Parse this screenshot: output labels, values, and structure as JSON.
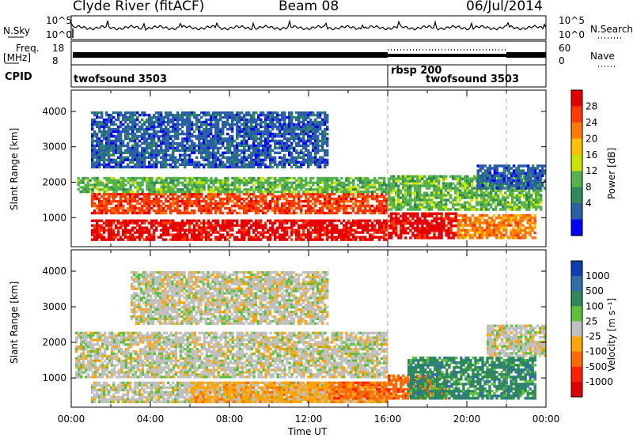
{
  "header": {
    "station": "Clyde River (fitACF)",
    "beam": "Beam 08",
    "date": "06/Jul/2014"
  },
  "summary_panels": {
    "nsky_label": "N.Sky",
    "nsky_ticks": [
      "10^5",
      "10^0"
    ],
    "nsearch_label": "N.Search",
    "nsearch_ticks": [
      "10^5",
      "10^0"
    ],
    "freq_label": "Freq.",
    "freq_unit": "[MHz]",
    "freq_ticks": [
      "18",
      "8"
    ],
    "nave_label": "Nave",
    "nave_ticks": [
      "60",
      "0"
    ],
    "cpid_label": "CPID",
    "cpid_segments": [
      {
        "label": "twofsound 3503",
        "start_h": 0,
        "end_h": 16
      },
      {
        "label": "rbsp 200",
        "start_h": 16,
        "end_h": 22
      },
      {
        "label": "twofsound 3503",
        "start_h": 16,
        "end_h": 22
      }
    ]
  },
  "chart_data": [
    {
      "type": "heatmap",
      "name": "power",
      "ylabel": "Slant Range [km]",
      "yticks": [
        "4000",
        "3000",
        "2000",
        "1000"
      ],
      "ylim": [
        180,
        4600
      ],
      "xlim": [
        0,
        24
      ],
      "colorbar": {
        "label": "Power [dB]",
        "ticks": [
          "28",
          "24",
          "20",
          "16",
          "12",
          "8",
          "4"
        ],
        "colors": [
          "#e60000",
          "#ff3a00",
          "#ff7a00",
          "#ffc000",
          "#c8e600",
          "#55b24c",
          "#2e8b57",
          "#2a5fa8",
          "#0000ff"
        ]
      },
      "regions": [
        {
          "t0": 1.0,
          "t1": 16.0,
          "r0": 350,
          "r1": 950,
          "level": 0
        },
        {
          "t0": 16.0,
          "t1": 19.5,
          "r0": 400,
          "r1": 1150,
          "level": 0
        },
        {
          "t0": 19.5,
          "t1": 23.5,
          "r0": 400,
          "r1": 1100,
          "level": 2
        },
        {
          "t0": 1.0,
          "t1": 16.0,
          "r0": 1100,
          "r1": 1700,
          "level": 1
        },
        {
          "t0": 0.3,
          "t1": 16.0,
          "r0": 1700,
          "r1": 2150,
          "level": 5
        },
        {
          "t0": 16.0,
          "t1": 23.8,
          "r0": 1200,
          "r1": 2200,
          "level": 5
        },
        {
          "t0": 20.5,
          "t1": 24.0,
          "r0": 1800,
          "r1": 2500,
          "level": 7
        },
        {
          "t0": 1.0,
          "t1": 13.0,
          "r0": 2400,
          "r1": 4000,
          "level": 7
        }
      ]
    },
    {
      "type": "heatmap",
      "name": "velocity",
      "ylabel": "Slant Range [km]",
      "xlabel": "Time UT",
      "xticks": [
        "00:00",
        "04:00",
        "08:00",
        "12:00",
        "16:00",
        "20:00",
        "00:00"
      ],
      "yticks": [
        "4000",
        "3000",
        "2000",
        "1000"
      ],
      "ylim": [
        180,
        4600
      ],
      "xlim": [
        0,
        24
      ],
      "colorbar": {
        "label": "Velocity [m s⁻¹]",
        "ticks": [
          "1000",
          "500",
          "100",
          "25",
          "-25",
          "-100",
          "-500",
          "-1000"
        ],
        "colors": [
          "#1040b0",
          "#2e6fa8",
          "#2e8b57",
          "#5cc03c",
          "#c0c0c0",
          "#ffa500",
          "#ff6a00",
          "#ff2000",
          "#e00000"
        ]
      },
      "regions": [
        {
          "t0": 0.2,
          "t1": 16.0,
          "r0": 1000,
          "r1": 2300,
          "level": 4
        },
        {
          "t0": 1.0,
          "t1": 16.0,
          "r0": 300,
          "r1": 900,
          "level": 4
        },
        {
          "t0": 6.0,
          "t1": 16.0,
          "r0": 300,
          "r1": 900,
          "level": 5
        },
        {
          "t0": 13.0,
          "t1": 16.0,
          "r0": 400,
          "r1": 900,
          "level": 6
        },
        {
          "t0": 16.0,
          "t1": 19.0,
          "r0": 400,
          "r1": 1100,
          "level": 6
        },
        {
          "t0": 17.0,
          "t1": 23.5,
          "r0": 400,
          "r1": 1600,
          "level": 2
        },
        {
          "t0": 21.0,
          "t1": 24.0,
          "r0": 1600,
          "r1": 2500,
          "level": 4
        },
        {
          "t0": 3.0,
          "t1": 13.0,
          "r0": 2500,
          "r1": 4000,
          "level": 4
        }
      ]
    }
  ]
}
